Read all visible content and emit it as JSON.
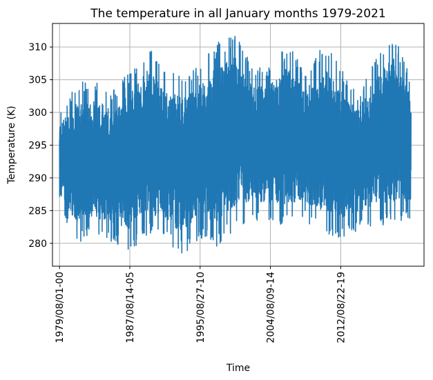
{
  "chart_data": {
    "type": "line",
    "title": "The temperature in all January months 1979-2021",
    "xlabel": "Time",
    "ylabel": "Temperature (K)",
    "x_tick_labels": [
      "1979/08/01-00",
      "1987/08/14-05",
      "1995/08/27-10",
      "2004/08/09-14",
      "2012/08/22-19"
    ],
    "y_ticks": [
      280,
      285,
      290,
      295,
      300,
      305,
      310
    ],
    "ylim": [
      276.5,
      313.6
    ],
    "xlim": [
      -0.02,
      1.037
    ],
    "grid": true,
    "series": [
      {
        "color": "#1f77b4",
        "x": [
          0,
          0.05,
          0.1,
          0.15,
          0.2,
          0.25,
          0.3,
          0.35,
          0.4,
          0.45,
          0.5,
          0.55,
          0.6,
          0.65,
          0.7,
          0.75,
          0.8,
          0.85,
          0.9,
          0.95,
          1.0
        ],
        "y_max": [
          300.2,
          304.5,
          305.1,
          303.3,
          306.6,
          310.2,
          307.1,
          305.8,
          307.6,
          311.0,
          312.3,
          306.9,
          307.3,
          310.5,
          306.4,
          310.6,
          307.3,
          303.0,
          308.9,
          312.4,
          305.1
        ],
        "y_min": [
          285.3,
          280.1,
          281.1,
          279.9,
          278.6,
          281.2,
          280.0,
          278.2,
          280.6,
          279.4,
          282.0,
          283.5,
          283.1,
          282.5,
          283.4,
          281.3,
          280.6,
          282.0,
          282.7,
          282.5,
          283.9
        ]
      }
    ]
  }
}
